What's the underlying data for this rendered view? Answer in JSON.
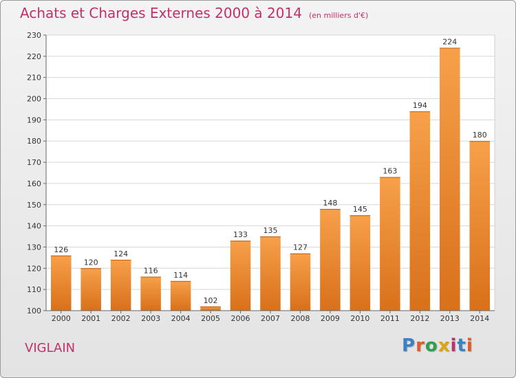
{
  "chart_data": {
    "type": "bar",
    "title": "Achats et Charges Externes 2000 à 2014",
    "subtitle": "(en milliers d'€)",
    "categories": [
      "2000",
      "2001",
      "2002",
      "2003",
      "2004",
      "2005",
      "2006",
      "2007",
      "2008",
      "2009",
      "2010",
      "2011",
      "2012",
      "2013",
      "2014"
    ],
    "values": [
      126,
      120,
      124,
      116,
      114,
      102,
      133,
      135,
      127,
      148,
      145,
      163,
      194,
      224,
      180
    ],
    "ylim": [
      100,
      230
    ],
    "yticks": [
      100,
      110,
      120,
      130,
      140,
      150,
      160,
      170,
      180,
      190,
      200,
      210,
      220,
      230
    ],
    "grid": true,
    "bar_color": "#f0913a"
  },
  "location": "VIGLAIN",
  "logo": {
    "text": "Proxiti",
    "letter_colors": [
      "#3b82c4",
      "#e05a2a",
      "#2e9e4f",
      "#e0a21a",
      "#c0306a",
      "#3b82c4",
      "#e05a2a"
    ]
  }
}
